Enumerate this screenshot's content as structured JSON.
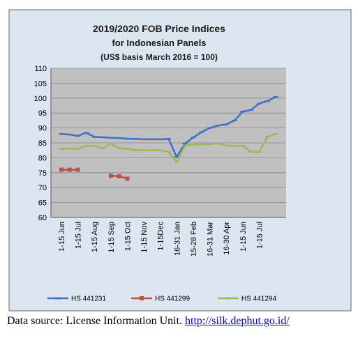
{
  "chart_data": {
    "type": "line",
    "title": [
      "2019/2020 FOB Price Indices",
      "for Indonesian Panels",
      "(US$ basis March 2016 = 100)"
    ],
    "xlabel": "",
    "ylabel": "",
    "ylim": [
      60,
      110
    ],
    "yticks": [
      60,
      65,
      70,
      75,
      80,
      85,
      90,
      95,
      100,
      105,
      110
    ],
    "grid": true,
    "legend_position": "bottom",
    "x_tick_labels": [
      "1-15 Jun",
      "1-15 Jul",
      "1-15 Aug",
      "1-15 Sep",
      "1-15 Oct",
      "1-15 Nov",
      "1-15Dec",
      "16-31 Jan",
      "15-28 Feb",
      "16-31 Mar",
      "16-30 Apr",
      "1-15 Jun",
      "1-15 Jul"
    ],
    "series": [
      {
        "name": "HS 441231",
        "color": "#4472c4",
        "values": [
          88,
          87.8,
          87.3,
          88.4,
          87,
          86.9,
          86.7,
          86.6,
          86.4,
          86.3,
          86.2,
          86.2,
          86.2,
          86.3,
          80.3,
          84.8,
          86.8,
          88.6,
          90,
          90.8,
          91.2,
          92.5,
          95.5,
          96,
          98.2,
          99,
          100.4
        ]
      },
      {
        "name": "HS 441299",
        "color": "#c0504d",
        "values": [
          76,
          76,
          76,
          null,
          null,
          null,
          74,
          73.8,
          73,
          null,
          null,
          null,
          null,
          null,
          null,
          null,
          null,
          null,
          null,
          null,
          null,
          null,
          null,
          null,
          null,
          null,
          null
        ]
      },
      {
        "name": "HS 441294",
        "color": "#9bbb59",
        "values": [
          83,
          83.1,
          83,
          84,
          84,
          83.1,
          84.8,
          83.2,
          83,
          82.6,
          82.5,
          82.5,
          82.5,
          82,
          78.6,
          84,
          84.5,
          84.5,
          84.6,
          84.8,
          84.1,
          84,
          84,
          82.1,
          82,
          87,
          88
        ]
      }
    ]
  },
  "footer": {
    "source_text": "Data source: License Information Unit. ",
    "source_link": "http://silk.dephut.go.id/"
  }
}
